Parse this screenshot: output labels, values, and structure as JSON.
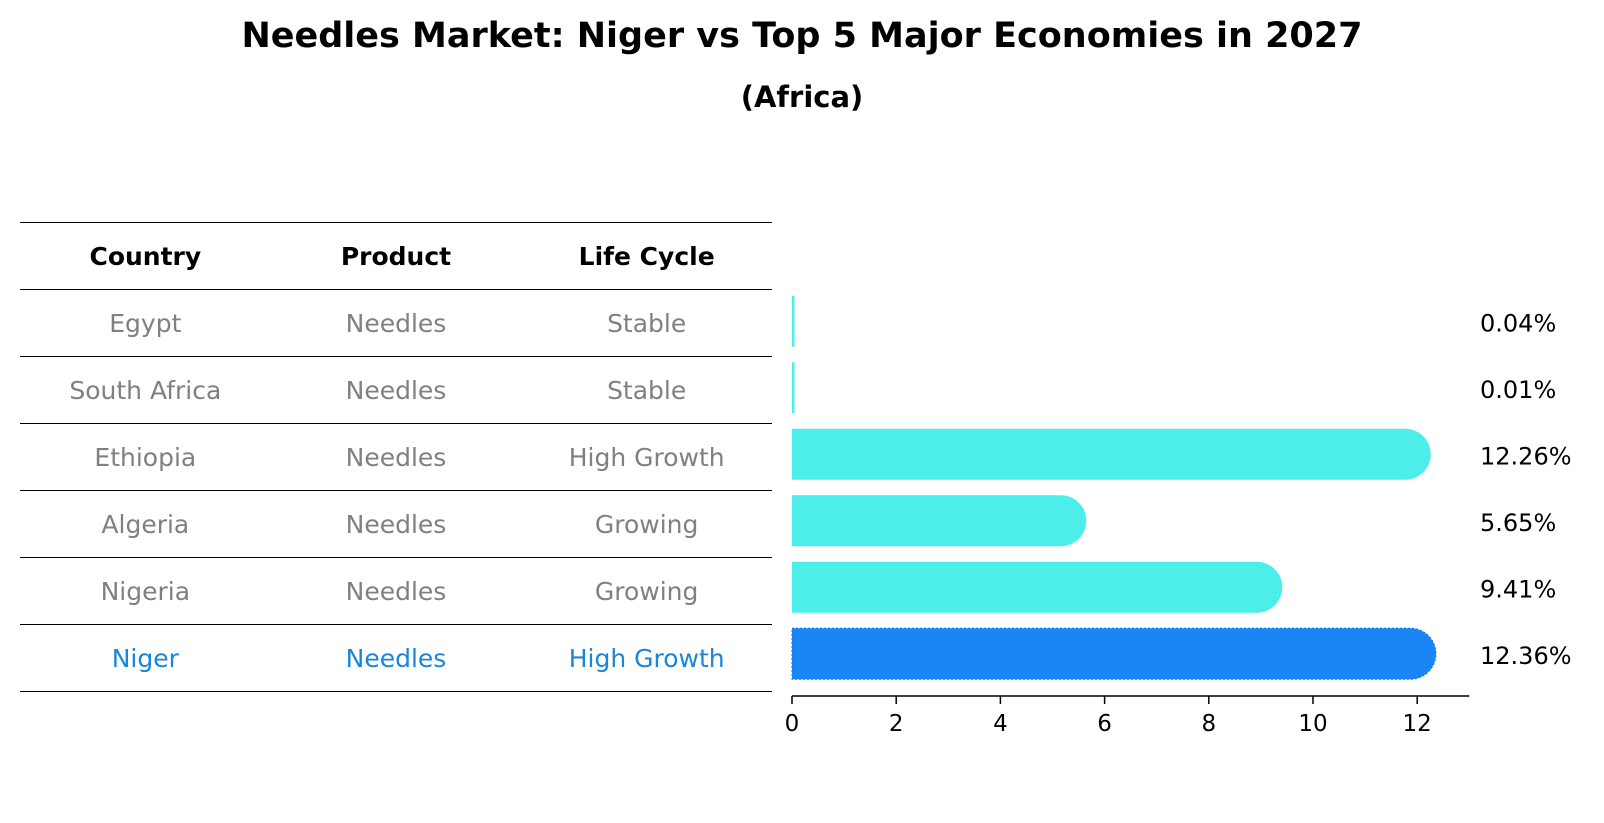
{
  "title": "Needles Market: Niger vs Top 5 Major Economies in 2027",
  "subtitle": "(Africa)",
  "table": {
    "headers": [
      "Country",
      "Product",
      "Life Cycle"
    ],
    "rows": [
      {
        "country": "Egypt",
        "product": "Needles",
        "life_cycle": "Stable"
      },
      {
        "country": "South Africa",
        "product": "Needles",
        "life_cycle": "Stable"
      },
      {
        "country": "Ethiopia",
        "product": "Needles",
        "life_cycle": "High Growth"
      },
      {
        "country": "Algeria",
        "product": "Needles",
        "life_cycle": "Growing"
      },
      {
        "country": "Nigeria",
        "product": "Needles",
        "life_cycle": "Growing"
      },
      {
        "country": "Niger",
        "product": "Needles",
        "life_cycle": "High Growth"
      }
    ],
    "highlight_row": "Niger"
  },
  "colors": {
    "bar": "#4deeea",
    "highlight": "#1a86f5",
    "highlight_text": "#1a86d9",
    "muted_text": "#808080"
  },
  "chart_data": {
    "type": "bar",
    "orientation": "horizontal",
    "categories": [
      "Egypt",
      "South Africa",
      "Ethiopia",
      "Algeria",
      "Nigeria",
      "Niger"
    ],
    "values": [
      0.04,
      0.01,
      12.26,
      5.65,
      9.41,
      12.36
    ],
    "value_labels": [
      "0.04%",
      "0.01%",
      "12.26%",
      "5.65%",
      "9.41%",
      "12.36%"
    ],
    "highlight": "Niger",
    "xlim": [
      0,
      13
    ],
    "xticks": [
      0,
      2,
      4,
      6,
      8,
      10,
      12
    ],
    "xlabel": "",
    "ylabel": ""
  }
}
